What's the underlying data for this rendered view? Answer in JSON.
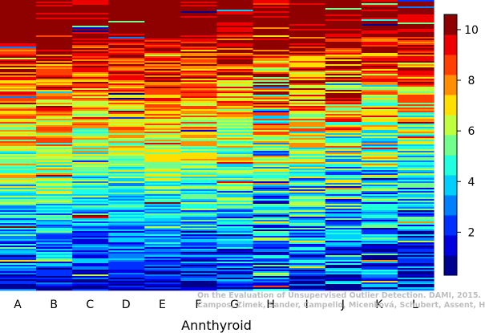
{
  "chart_data": {
    "type": "heatmap",
    "xlabel": "Annthyroid",
    "categories": [
      "A",
      "B",
      "C",
      "D",
      "E",
      "F",
      "G",
      "H",
      "I",
      "J",
      "K",
      "L"
    ],
    "colorbar": {
      "range": [
        0.3,
        10.6
      ],
      "ticks": [
        "2",
        "4",
        "6",
        "8",
        "10"
      ],
      "tick_values": [
        2,
        4,
        6,
        8,
        10
      ],
      "levels": 12,
      "colors": [
        "#00008f",
        "#0000df",
        "#0030ff",
        "#0080ff",
        "#00cfff",
        "#20ffdf",
        "#70ff8f",
        "#bfff40",
        "#ffdf00",
        "#ff8f00",
        "#ff4000",
        "#ef0000",
        "#8f0000"
      ]
    },
    "column_profiles": [
      {
        "label": "A",
        "top_rank": 10.4,
        "mid_rank": 6.5,
        "bottom_rank": 1.5,
        "noise": 2.2
      },
      {
        "label": "B",
        "top_rank": 10.3,
        "mid_rank": 6.8,
        "bottom_rank": 1.6,
        "noise": 2.0
      },
      {
        "label": "C",
        "top_rank": 10.2,
        "mid_rank": 6.0,
        "bottom_rank": 1.3,
        "noise": 1.8
      },
      {
        "label": "D",
        "top_rank": 10.2,
        "mid_rank": 6.2,
        "bottom_rank": 1.2,
        "noise": 1.6
      },
      {
        "label": "E",
        "top_rank": 10.3,
        "mid_rank": 6.6,
        "bottom_rank": 1.2,
        "noise": 1.4
      },
      {
        "label": "F",
        "top_rank": 10.2,
        "mid_rank": 6.4,
        "bottom_rank": 1.3,
        "noise": 1.8
      },
      {
        "label": "G",
        "top_rank": 10.1,
        "mid_rank": 5.8,
        "bottom_rank": 1.4,
        "noise": 2.2
      },
      {
        "label": "H",
        "top_rank": 9.8,
        "mid_rank": 5.2,
        "bottom_rank": 2.6,
        "noise": 3.2
      },
      {
        "label": "I",
        "top_rank": 10.2,
        "mid_rank": 6.0,
        "bottom_rank": 1.4,
        "noise": 2.4
      },
      {
        "label": "J",
        "top_rank": 10.4,
        "mid_rank": 5.6,
        "bottom_rank": 2.0,
        "noise": 3.0
      },
      {
        "label": "K",
        "top_rank": 10.1,
        "mid_rank": 5.4,
        "bottom_rank": 1.8,
        "noise": 2.6
      },
      {
        "label": "L",
        "top_rank": 10.0,
        "mid_rank": 5.0,
        "bottom_rank": 1.6,
        "noise": 2.2
      }
    ]
  },
  "watermark": {
    "line1": "On the Evaluation of Unsupervised Outlier Detection. DAMI, 2015.",
    "line2": "Campos, Zimek, Sander, Campello, Micenková, Schubert, Assent, Houle"
  }
}
